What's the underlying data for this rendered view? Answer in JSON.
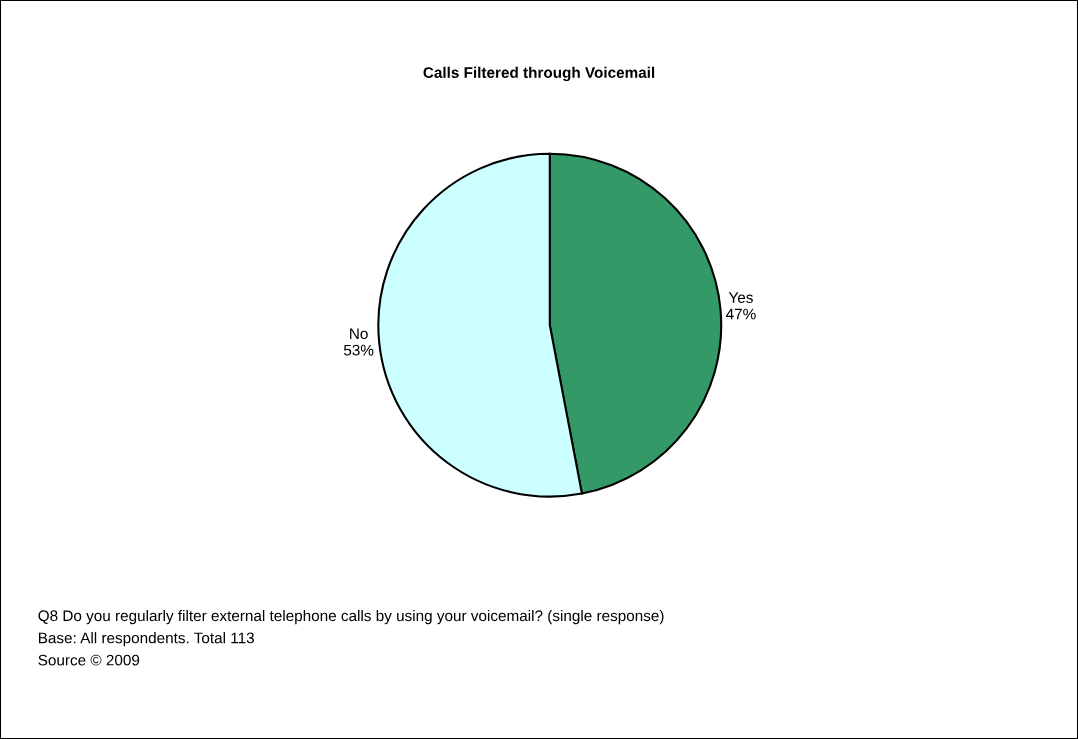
{
  "chart_data": {
    "type": "pie",
    "title": "Calls Filtered through Voicemail",
    "categories": [
      "Yes",
      "No"
    ],
    "values": [
      47,
      53
    ],
    "value_labels": [
      "47%",
      "53%"
    ],
    "colors": [
      "#339966",
      "#ccffff"
    ],
    "annotations": [
      "Q8 Do you regularly filter external telephone calls by using your voicemail? (single response)",
      "Base: All respondents. Total 113",
      "Source © 2009"
    ],
    "legend": false
  }
}
